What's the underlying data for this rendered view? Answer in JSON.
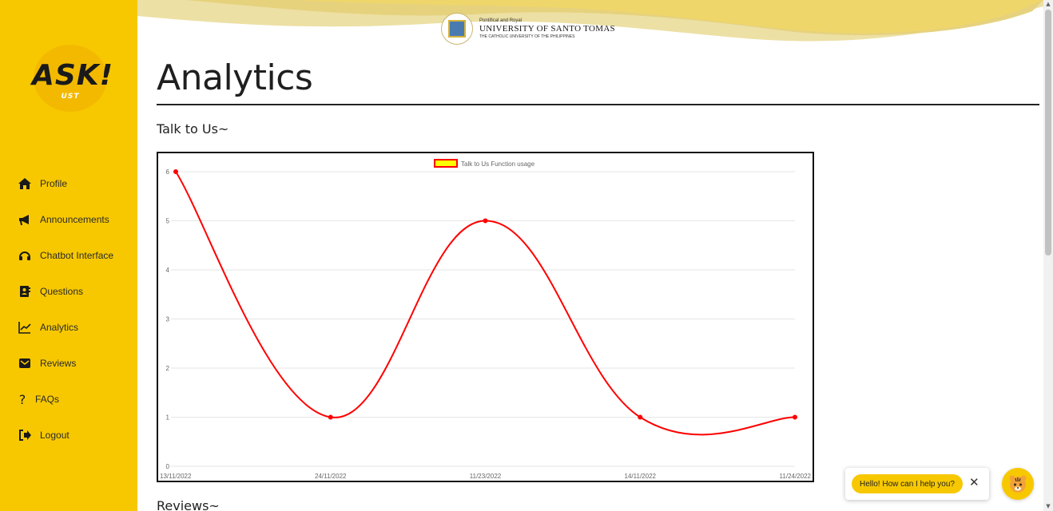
{
  "sidebar": {
    "logo_main": "ASK!",
    "logo_sub": "UST",
    "items": [
      {
        "label": "Profile",
        "icon": "home-icon"
      },
      {
        "label": "Announcements",
        "icon": "megaphone-icon"
      },
      {
        "label": "Chatbot Interface",
        "icon": "headset-icon"
      },
      {
        "label": "Questions",
        "icon": "contact-book-icon"
      },
      {
        "label": "Analytics",
        "icon": "line-chart-icon"
      },
      {
        "label": "Reviews",
        "icon": "envelope-icon"
      },
      {
        "label": "FAQs",
        "icon": "question-mark-icon"
      },
      {
        "label": "Logout",
        "icon": "logout-icon"
      }
    ]
  },
  "header": {
    "uni_small": "Pontifical and Royal",
    "uni_main": "UNIVERSITY OF SANTO TOMAS",
    "uni_sub": "THE CATHOLIC UNIVERSITY OF THE PHILIPPINES"
  },
  "main": {
    "title": "Analytics",
    "section1_title": "Talk to Us~",
    "section2_title": "Reviews~"
  },
  "chat": {
    "greeting": "Hello! How can I help you?",
    "close_symbol": "✕"
  },
  "colors": {
    "sidebar_bg": "#f7c800",
    "line": "#ff0000",
    "legend_fill": "#ffff00",
    "banner_wave": "#ead98a"
  },
  "chart_data": {
    "type": "line",
    "title": "",
    "xlabel": "",
    "ylabel": "",
    "categories": [
      "13/11/2022",
      "24/11/2022",
      "11/23/2022",
      "14/11/2022",
      "11/24/2022"
    ],
    "series": [
      {
        "name": "Talk to Us Function usage",
        "values": [
          6,
          1,
          5,
          1,
          1
        ]
      }
    ],
    "ylim": [
      0,
      6
    ],
    "yticks": [
      0,
      1,
      2,
      3,
      4,
      5,
      6
    ],
    "grid": true,
    "legend": "top-center",
    "smooth": true
  }
}
